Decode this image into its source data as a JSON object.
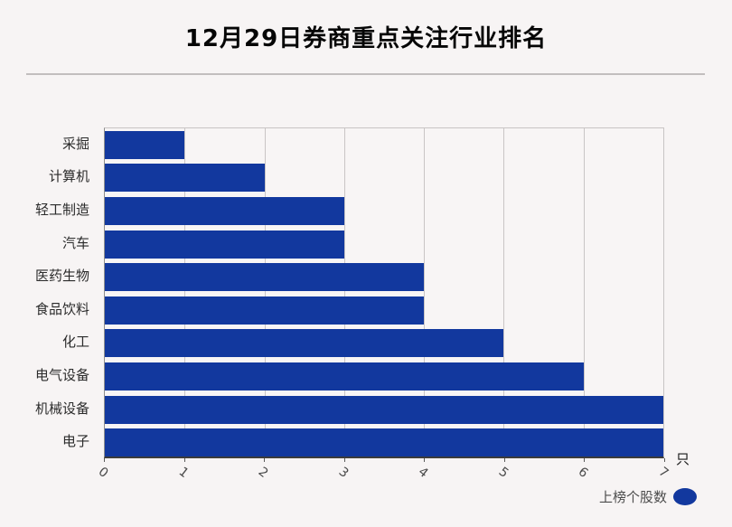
{
  "title": "12月29日券商重点关注行业排名",
  "chart_data": {
    "type": "bar",
    "orientation": "horizontal",
    "title": "12月29日券商重点关注行业排名",
    "categories": [
      "采掘",
      "计算机",
      "轻工制造",
      "汽车",
      "医药生物",
      "食品饮料",
      "化工",
      "电气设备",
      "机械设备",
      "电子"
    ],
    "series": [
      {
        "name": "上榜个股数",
        "values": [
          1,
          2,
          3,
          3,
          4,
          4,
          5,
          6,
          7,
          7
        ]
      }
    ],
    "xlabel": "",
    "ylabel": "",
    "unit_label": "只",
    "xlim": [
      0,
      7
    ],
    "xticks": [
      0,
      1,
      2,
      3,
      4,
      5,
      6,
      7
    ],
    "grid": true,
    "legend_position": "bottom-right",
    "bar_color": "#12389e",
    "background_color": "#f7f4f4",
    "gridline_color": "#c9c5c5"
  },
  "legend": {
    "label": "上榜个股数",
    "marker_icon": "ellipse-marker",
    "marker_color": "#12389e"
  }
}
